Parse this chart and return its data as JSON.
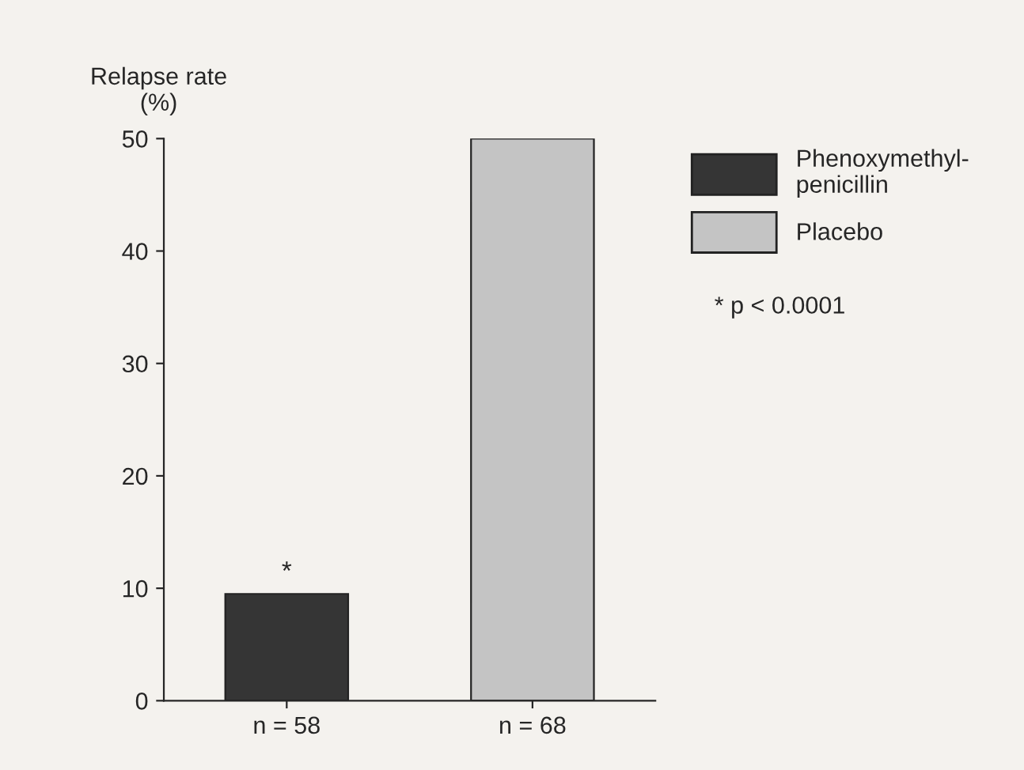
{
  "chart_data": {
    "type": "bar",
    "ylabel": "Relapse rate (%)",
    "categories": [
      "n = 58",
      "n = 68"
    ],
    "series": [
      {
        "name": "Phenoxymethyl-\npenicillin",
        "color": "#353535",
        "values": [
          9.5,
          null
        ]
      },
      {
        "name": "Placebo",
        "color": "#c4c4c4",
        "values": [
          null,
          50
        ]
      }
    ],
    "ylim": [
      0,
      50
    ],
    "yticks": [
      0,
      10,
      20,
      30,
      40,
      50
    ],
    "legend": "right",
    "annotations": [
      {
        "text": "*",
        "x": "n = 58",
        "y": 9.5
      },
      "* p < 0.0001"
    ]
  }
}
